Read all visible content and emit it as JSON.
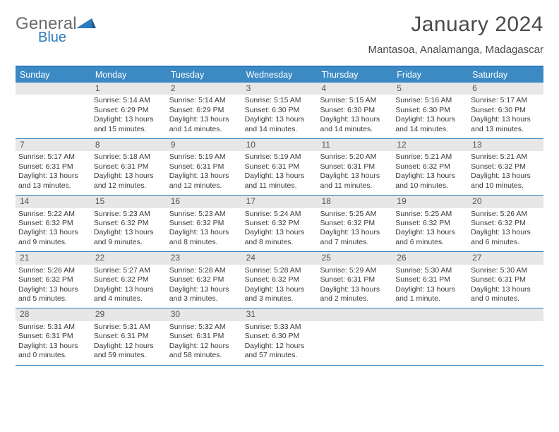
{
  "logo": {
    "text1": "General",
    "text2": "Blue"
  },
  "title": "January 2024",
  "subtitle": "Mantasoa, Analamanga, Madagascar",
  "colors": {
    "accent": "#2b7bbd",
    "header_bg": "#3b8ac4",
    "daynum_bg": "#e7e7e7",
    "text": "#333333",
    "title_text": "#4a4a4a",
    "logo_gray": "#6a6a6a"
  },
  "dayNames": [
    "Sunday",
    "Monday",
    "Tuesday",
    "Wednesday",
    "Thursday",
    "Friday",
    "Saturday"
  ],
  "weeks": [
    [
      {
        "n": "",
        "lines": []
      },
      {
        "n": "1",
        "lines": [
          "Sunrise: 5:14 AM",
          "Sunset: 6:29 PM",
          "Daylight: 13 hours",
          "and 15 minutes."
        ]
      },
      {
        "n": "2",
        "lines": [
          "Sunrise: 5:14 AM",
          "Sunset: 6:29 PM",
          "Daylight: 13 hours",
          "and 14 minutes."
        ]
      },
      {
        "n": "3",
        "lines": [
          "Sunrise: 5:15 AM",
          "Sunset: 6:30 PM",
          "Daylight: 13 hours",
          "and 14 minutes."
        ]
      },
      {
        "n": "4",
        "lines": [
          "Sunrise: 5:15 AM",
          "Sunset: 6:30 PM",
          "Daylight: 13 hours",
          "and 14 minutes."
        ]
      },
      {
        "n": "5",
        "lines": [
          "Sunrise: 5:16 AM",
          "Sunset: 6:30 PM",
          "Daylight: 13 hours",
          "and 14 minutes."
        ]
      },
      {
        "n": "6",
        "lines": [
          "Sunrise: 5:17 AM",
          "Sunset: 6:30 PM",
          "Daylight: 13 hours",
          "and 13 minutes."
        ]
      }
    ],
    [
      {
        "n": "7",
        "lines": [
          "Sunrise: 5:17 AM",
          "Sunset: 6:31 PM",
          "Daylight: 13 hours",
          "and 13 minutes."
        ]
      },
      {
        "n": "8",
        "lines": [
          "Sunrise: 5:18 AM",
          "Sunset: 6:31 PM",
          "Daylight: 13 hours",
          "and 12 minutes."
        ]
      },
      {
        "n": "9",
        "lines": [
          "Sunrise: 5:19 AM",
          "Sunset: 6:31 PM",
          "Daylight: 13 hours",
          "and 12 minutes."
        ]
      },
      {
        "n": "10",
        "lines": [
          "Sunrise: 5:19 AM",
          "Sunset: 6:31 PM",
          "Daylight: 13 hours",
          "and 11 minutes."
        ]
      },
      {
        "n": "11",
        "lines": [
          "Sunrise: 5:20 AM",
          "Sunset: 6:31 PM",
          "Daylight: 13 hours",
          "and 11 minutes."
        ]
      },
      {
        "n": "12",
        "lines": [
          "Sunrise: 5:21 AM",
          "Sunset: 6:32 PM",
          "Daylight: 13 hours",
          "and 10 minutes."
        ]
      },
      {
        "n": "13",
        "lines": [
          "Sunrise: 5:21 AM",
          "Sunset: 6:32 PM",
          "Daylight: 13 hours",
          "and 10 minutes."
        ]
      }
    ],
    [
      {
        "n": "14",
        "lines": [
          "Sunrise: 5:22 AM",
          "Sunset: 6:32 PM",
          "Daylight: 13 hours",
          "and 9 minutes."
        ]
      },
      {
        "n": "15",
        "lines": [
          "Sunrise: 5:23 AM",
          "Sunset: 6:32 PM",
          "Daylight: 13 hours",
          "and 9 minutes."
        ]
      },
      {
        "n": "16",
        "lines": [
          "Sunrise: 5:23 AM",
          "Sunset: 6:32 PM",
          "Daylight: 13 hours",
          "and 8 minutes."
        ]
      },
      {
        "n": "17",
        "lines": [
          "Sunrise: 5:24 AM",
          "Sunset: 6:32 PM",
          "Daylight: 13 hours",
          "and 8 minutes."
        ]
      },
      {
        "n": "18",
        "lines": [
          "Sunrise: 5:25 AM",
          "Sunset: 6:32 PM",
          "Daylight: 13 hours",
          "and 7 minutes."
        ]
      },
      {
        "n": "19",
        "lines": [
          "Sunrise: 5:25 AM",
          "Sunset: 6:32 PM",
          "Daylight: 13 hours",
          "and 6 minutes."
        ]
      },
      {
        "n": "20",
        "lines": [
          "Sunrise: 5:26 AM",
          "Sunset: 6:32 PM",
          "Daylight: 13 hours",
          "and 6 minutes."
        ]
      }
    ],
    [
      {
        "n": "21",
        "lines": [
          "Sunrise: 5:26 AM",
          "Sunset: 6:32 PM",
          "Daylight: 13 hours",
          "and 5 minutes."
        ]
      },
      {
        "n": "22",
        "lines": [
          "Sunrise: 5:27 AM",
          "Sunset: 6:32 PM",
          "Daylight: 13 hours",
          "and 4 minutes."
        ]
      },
      {
        "n": "23",
        "lines": [
          "Sunrise: 5:28 AM",
          "Sunset: 6:32 PM",
          "Daylight: 13 hours",
          "and 3 minutes."
        ]
      },
      {
        "n": "24",
        "lines": [
          "Sunrise: 5:28 AM",
          "Sunset: 6:32 PM",
          "Daylight: 13 hours",
          "and 3 minutes."
        ]
      },
      {
        "n": "25",
        "lines": [
          "Sunrise: 5:29 AM",
          "Sunset: 6:31 PM",
          "Daylight: 13 hours",
          "and 2 minutes."
        ]
      },
      {
        "n": "26",
        "lines": [
          "Sunrise: 5:30 AM",
          "Sunset: 6:31 PM",
          "Daylight: 13 hours",
          "and 1 minute."
        ]
      },
      {
        "n": "27",
        "lines": [
          "Sunrise: 5:30 AM",
          "Sunset: 6:31 PM",
          "Daylight: 13 hours",
          "and 0 minutes."
        ]
      }
    ],
    [
      {
        "n": "28",
        "lines": [
          "Sunrise: 5:31 AM",
          "Sunset: 6:31 PM",
          "Daylight: 13 hours",
          "and 0 minutes."
        ]
      },
      {
        "n": "29",
        "lines": [
          "Sunrise: 5:31 AM",
          "Sunset: 6:31 PM",
          "Daylight: 12 hours",
          "and 59 minutes."
        ]
      },
      {
        "n": "30",
        "lines": [
          "Sunrise: 5:32 AM",
          "Sunset: 6:31 PM",
          "Daylight: 12 hours",
          "and 58 minutes."
        ]
      },
      {
        "n": "31",
        "lines": [
          "Sunrise: 5:33 AM",
          "Sunset: 6:30 PM",
          "Daylight: 12 hours",
          "and 57 minutes."
        ]
      },
      {
        "n": "",
        "lines": []
      },
      {
        "n": "",
        "lines": []
      },
      {
        "n": "",
        "lines": []
      }
    ]
  ]
}
